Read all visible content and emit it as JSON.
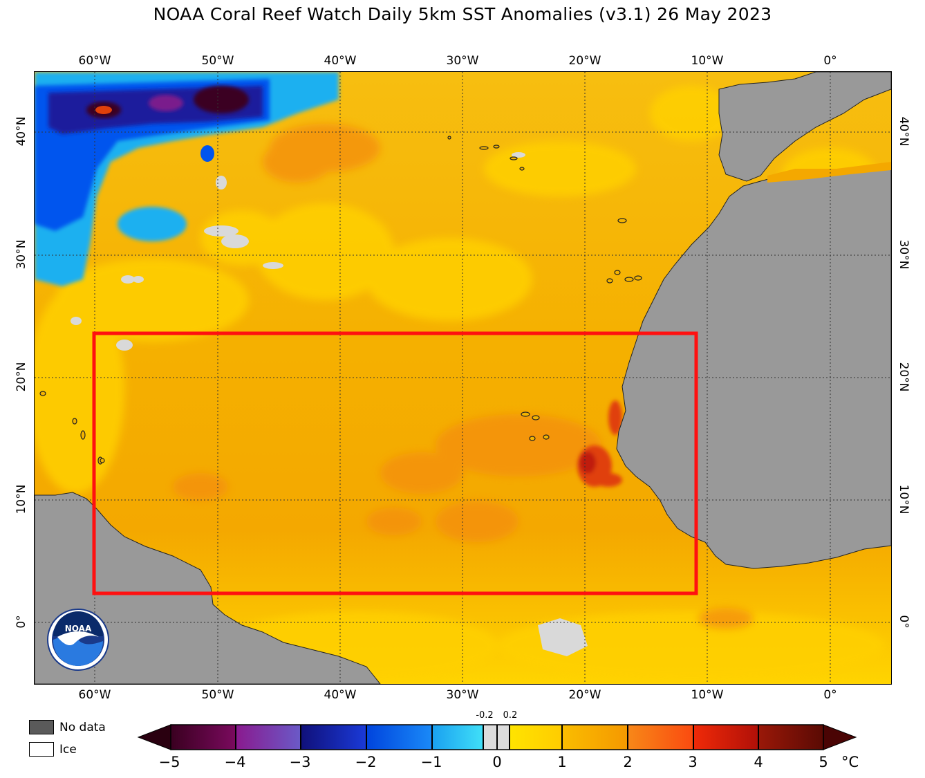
{
  "title": "NOAA Coral Reef Watch Daily 5km SST Anomalies  (v3.1)   26 May 2023",
  "lon_labels": [
    "60°W",
    "50°W",
    "40°W",
    "30°W",
    "20°W",
    "10°W",
    "0°"
  ],
  "lat_labels": [
    "40°N",
    "30°N",
    "20°N",
    "10°N",
    "0°"
  ],
  "legend": {
    "no_data": "No data",
    "ice": "Ice"
  },
  "colorbar": {
    "ticks": [
      "−5",
      "−4",
      "−3",
      "−2",
      "−1",
      "0",
      "1",
      "2",
      "3",
      "4",
      "5"
    ],
    "small_ticks": [
      "-0.2",
      "0.2"
    ],
    "unit": "°C",
    "colors": {
      "m5": "#3a0020",
      "m4": "#7a1f8c",
      "m3": "#1a1a9c",
      "m2": "#0055ee",
      "m1": "#1ab0f0",
      "zero": "#dcdcdc",
      "p1": "#ffd000",
      "p2": "#f5a800",
      "p3": "#fb5a10",
      "p4": "#c01a08",
      "p5": "#6a0c04"
    }
  },
  "map_colors": {
    "land": "#999999",
    "no_data": "#5a5a5a",
    "missing": "#d9d9d9",
    "highlight_box": "#ff1010"
  }
}
